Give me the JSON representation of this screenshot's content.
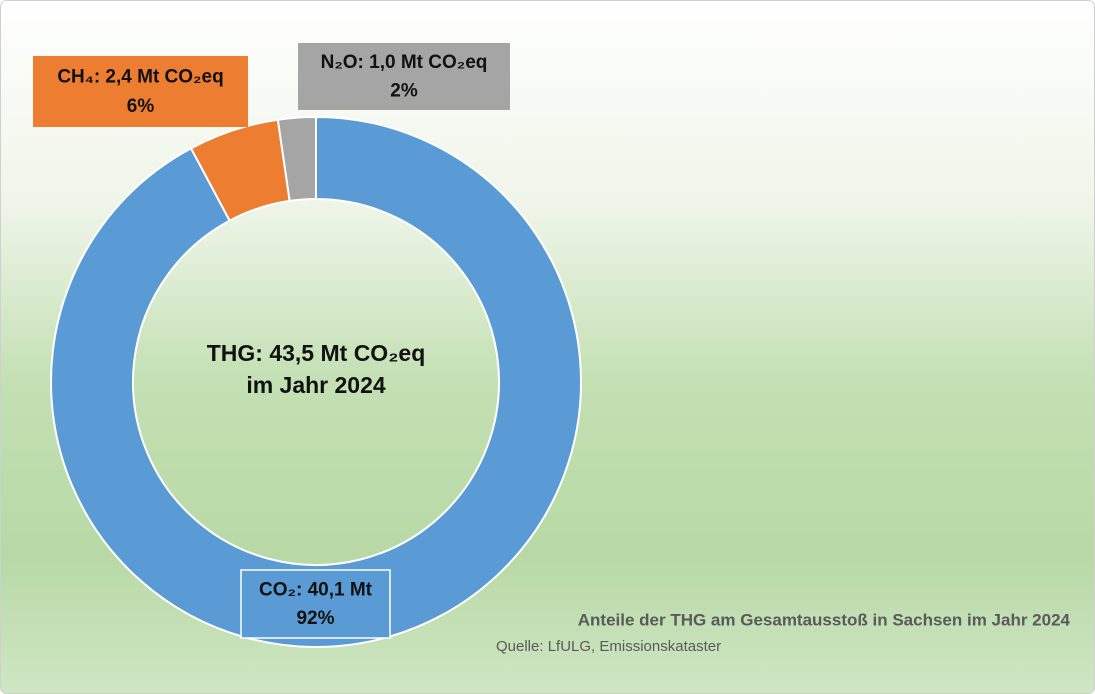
{
  "chart_data": {
    "type": "donut",
    "center_label": [
      "THG: 43,5 Mt CO₂eq",
      "im Jahr 2024"
    ],
    "categories": [
      "CO₂",
      "CH₄",
      "N₂O"
    ],
    "values": [
      40.1,
      2.4,
      1.0
    ],
    "value_labels": [
      "CO₂: 40,1 Mt",
      "CH₄: 2,4 Mt CO₂eq",
      "N₂O: 1,0 Mt CO₂eq"
    ],
    "shares": [
      92,
      6,
      2
    ],
    "share_labels": [
      "92%",
      "6%",
      "2%"
    ],
    "colors": [
      "#5b9bd5",
      "#ed7d31",
      "#a5a5a5"
    ],
    "title": "Anteile der THG am Gesamtausstoß in Sachsen im Jahr 2024",
    "source": "Quelle: LfULG, Emissionskataster"
  }
}
